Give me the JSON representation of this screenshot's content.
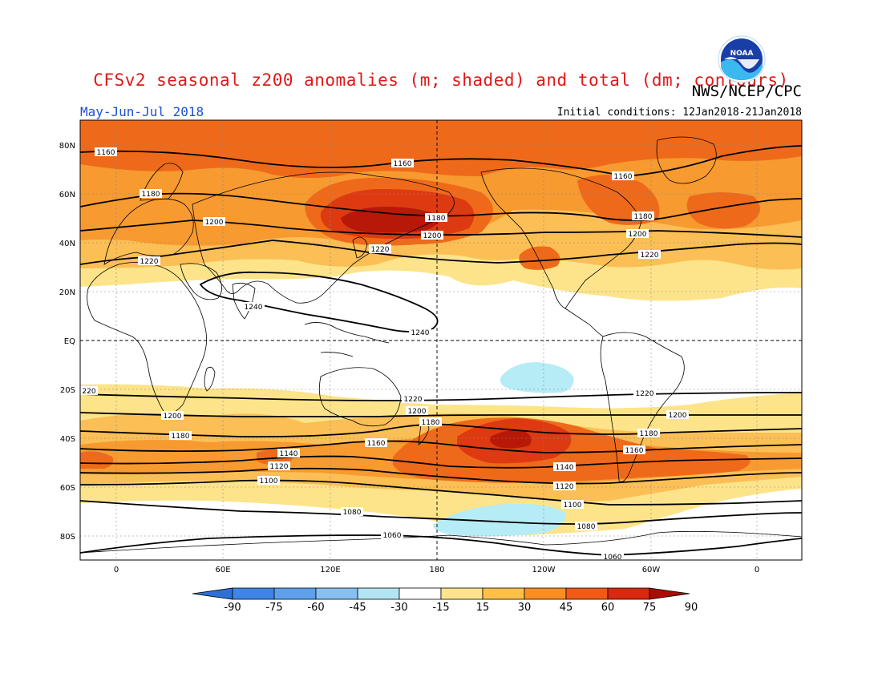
{
  "title": "CFSv2 seasonal z200 anomalies (m; shaded) and total (dm; contours)",
  "agency": "NWS/NCEP/CPC",
  "logo_text": "NOAA",
  "season": "May-Jun-Jul 2018",
  "initial_conditions": "Initial conditions: 12Jan2018-21Jan2018",
  "map": {
    "lat_labels": [
      "80N",
      "60N",
      "40N",
      "20N",
      "EQ",
      "20S",
      "40S",
      "60S",
      "80S"
    ],
    "lon_labels": [
      "0",
      "60E",
      "120E",
      "180",
      "120W",
      "60W",
      "0"
    ],
    "contours": [
      {
        "value": "1060"
      },
      {
        "value": "1080"
      },
      {
        "value": "1100"
      },
      {
        "value": "1120"
      },
      {
        "value": "1140"
      },
      {
        "value": "1160"
      },
      {
        "value": "1180"
      },
      {
        "value": "1200"
      },
      {
        "value": "1220"
      },
      {
        "value": "1240"
      }
    ],
    "contour_labels": [
      "1160",
      "1160",
      "1160",
      "1180",
      "1180",
      "1180",
      "1200",
      "1200",
      "1200",
      "1220",
      "1220",
      "1220",
      "1240",
      "1240",
      "220",
      "1220",
      "1220",
      "1200",
      "1200",
      "1200",
      "1180",
      "1180",
      "1180",
      "1160",
      "1160",
      "1140",
      "1140",
      "1120",
      "1120",
      "1100",
      "1100",
      "1080",
      "1080",
      "1060",
      "1060"
    ]
  },
  "colorbar": {
    "labels": [
      "-90",
      "-75",
      "-60",
      "-45",
      "-30",
      "-15",
      "15",
      "30",
      "45",
      "60",
      "75",
      "90"
    ],
    "colors": [
      "#2f6fd8",
      "#3f85e6",
      "#5ea0ec",
      "#86c0f1",
      "#b2e4f4",
      "#ffffff",
      "#ffe38e",
      "#ffc04a",
      "#f98f22",
      "#f05a16",
      "#d9290e",
      "#a80d06"
    ]
  },
  "anomaly_colors": {
    "a15": "#fde48a",
    "a30": "#fbbf55",
    "a45": "#f79a30",
    "a60": "#ee6a1a",
    "a75": "#dd3a12",
    "a90": "#b81808",
    "neg15": "#b6ecf5"
  }
}
